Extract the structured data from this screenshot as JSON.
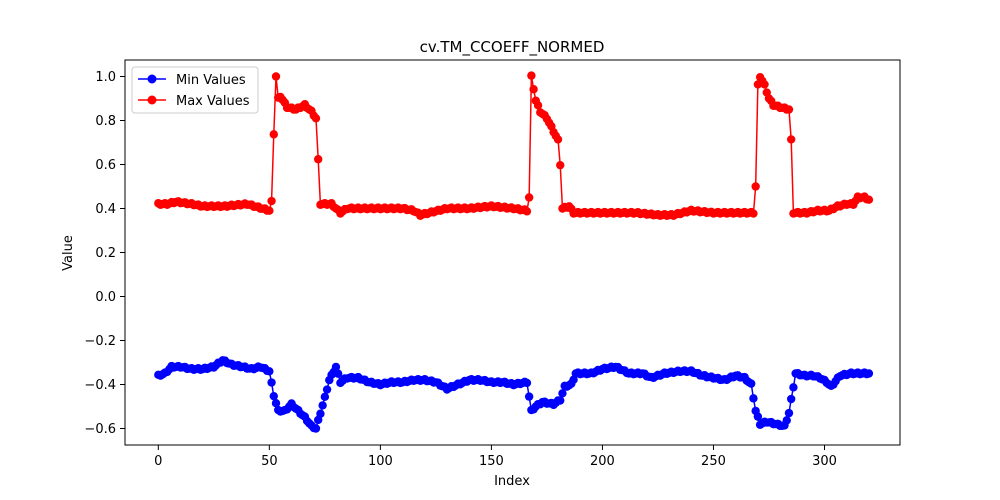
{
  "chart_data": {
    "type": "line",
    "title": "cv.TM_CCOEFF_NORMED",
    "xlabel": "Index",
    "ylabel": "Value",
    "xlim": [
      -15,
      334
    ],
    "ylim": [
      -0.675,
      1.075
    ],
    "xticks": [
      0,
      50,
      100,
      150,
      200,
      250,
      300
    ],
    "yticks": [
      -0.6,
      -0.4,
      -0.2,
      0.0,
      0.2,
      0.4,
      0.6,
      0.8,
      1.0
    ],
    "ytick_labels": [
      "−0.6",
      "−0.4",
      "−0.2",
      "0.0",
      "0.2",
      "0.4",
      "0.6",
      "0.8",
      "1.0"
    ],
    "grid": false,
    "legend_position": "top-left",
    "marker": "circle",
    "series": [
      {
        "name": "Min Values",
        "color": "#0000ff",
        "keypoints": [
          [
            0,
            -0.36
          ],
          [
            3,
            -0.35
          ],
          [
            6,
            -0.32
          ],
          [
            10,
            -0.32
          ],
          [
            15,
            -0.33
          ],
          [
            20,
            -0.33
          ],
          [
            25,
            -0.32
          ],
          [
            29,
            -0.29
          ],
          [
            33,
            -0.31
          ],
          [
            38,
            -0.32
          ],
          [
            42,
            -0.33
          ],
          [
            46,
            -0.32
          ],
          [
            50,
            -0.34
          ],
          [
            52,
            -0.45
          ],
          [
            54,
            -0.52
          ],
          [
            57,
            -0.52
          ],
          [
            60,
            -0.49
          ],
          [
            63,
            -0.52
          ],
          [
            66,
            -0.55
          ],
          [
            69,
            -0.59
          ],
          [
            71,
            -0.6
          ],
          [
            73,
            -0.53
          ],
          [
            75,
            -0.46
          ],
          [
            77,
            -0.38
          ],
          [
            80,
            -0.32
          ],
          [
            82,
            -0.39
          ],
          [
            85,
            -0.37
          ],
          [
            90,
            -0.37
          ],
          [
            95,
            -0.39
          ],
          [
            100,
            -0.4
          ],
          [
            105,
            -0.39
          ],
          [
            110,
            -0.39
          ],
          [
            115,
            -0.38
          ],
          [
            120,
            -0.38
          ],
          [
            125,
            -0.39
          ],
          [
            130,
            -0.42
          ],
          [
            135,
            -0.4
          ],
          [
            140,
            -0.38
          ],
          [
            145,
            -0.38
          ],
          [
            150,
            -0.39
          ],
          [
            155,
            -0.39
          ],
          [
            160,
            -0.4
          ],
          [
            166,
            -0.39
          ],
          [
            168,
            -0.52
          ],
          [
            170,
            -0.5
          ],
          [
            173,
            -0.48
          ],
          [
            178,
            -0.49
          ],
          [
            181,
            -0.47
          ],
          [
            183,
            -0.41
          ],
          [
            186,
            -0.4
          ],
          [
            188,
            -0.35
          ],
          [
            195,
            -0.35
          ],
          [
            200,
            -0.33
          ],
          [
            206,
            -0.32
          ],
          [
            212,
            -0.35
          ],
          [
            218,
            -0.35
          ],
          [
            222,
            -0.37
          ],
          [
            228,
            -0.35
          ],
          [
            235,
            -0.34
          ],
          [
            240,
            -0.34
          ],
          [
            245,
            -0.36
          ],
          [
            250,
            -0.37
          ],
          [
            255,
            -0.38
          ],
          [
            260,
            -0.36
          ],
          [
            264,
            -0.37
          ],
          [
            267,
            -0.4
          ],
          [
            269,
            -0.52
          ],
          [
            271,
            -0.58
          ],
          [
            274,
            -0.57
          ],
          [
            278,
            -0.58
          ],
          [
            282,
            -0.59
          ],
          [
            284,
            -0.53
          ],
          [
            285,
            -0.47
          ],
          [
            287,
            -0.35
          ],
          [
            291,
            -0.36
          ],
          [
            295,
            -0.36
          ],
          [
            298,
            -0.37
          ],
          [
            301,
            -0.39
          ],
          [
            303,
            -0.41
          ],
          [
            307,
            -0.36
          ],
          [
            312,
            -0.35
          ],
          [
            316,
            -0.35
          ],
          [
            320,
            -0.35
          ]
        ]
      },
      {
        "name": "Max Values",
        "color": "#ff0000",
        "keypoints": [
          [
            0,
            0.42
          ],
          [
            4,
            0.42
          ],
          [
            8,
            0.43
          ],
          [
            15,
            0.42
          ],
          [
            20,
            0.41
          ],
          [
            30,
            0.41
          ],
          [
            40,
            0.42
          ],
          [
            50,
            0.39
          ],
          [
            51,
            0.43
          ],
          [
            52,
            0.74
          ],
          [
            53,
            1.0
          ],
          [
            54,
            0.9
          ],
          [
            55,
            0.91
          ],
          [
            58,
            0.86
          ],
          [
            62,
            0.85
          ],
          [
            66,
            0.87
          ],
          [
            69,
            0.84
          ],
          [
            71,
            0.81
          ],
          [
            72,
            0.62
          ],
          [
            73,
            0.42
          ],
          [
            78,
            0.42
          ],
          [
            82,
            0.38
          ],
          [
            85,
            0.4
          ],
          [
            90,
            0.4
          ],
          [
            100,
            0.4
          ],
          [
            110,
            0.4
          ],
          [
            115,
            0.39
          ],
          [
            118,
            0.37
          ],
          [
            122,
            0.38
          ],
          [
            130,
            0.4
          ],
          [
            140,
            0.4
          ],
          [
            150,
            0.41
          ],
          [
            160,
            0.4
          ],
          [
            166,
            0.39
          ],
          [
            167,
            0.45
          ],
          [
            168,
            1.0
          ],
          [
            170,
            0.89
          ],
          [
            172,
            0.84
          ],
          [
            175,
            0.81
          ],
          [
            178,
            0.75
          ],
          [
            180,
            0.71
          ],
          [
            181,
            0.6
          ],
          [
            182,
            0.4
          ],
          [
            185,
            0.41
          ],
          [
            187,
            0.38
          ],
          [
            200,
            0.38
          ],
          [
            215,
            0.38
          ],
          [
            225,
            0.37
          ],
          [
            232,
            0.37
          ],
          [
            240,
            0.39
          ],
          [
            250,
            0.38
          ],
          [
            260,
            0.38
          ],
          [
            268,
            0.38
          ],
          [
            269,
            0.5
          ],
          [
            270,
            0.96
          ],
          [
            271,
            1.0
          ],
          [
            273,
            0.96
          ],
          [
            275,
            0.9
          ],
          [
            277,
            0.87
          ],
          [
            280,
            0.86
          ],
          [
            284,
            0.85
          ],
          [
            285,
            0.71
          ],
          [
            286,
            0.38
          ],
          [
            292,
            0.38
          ],
          [
            297,
            0.39
          ],
          [
            302,
            0.39
          ],
          [
            306,
            0.41
          ],
          [
            310,
            0.42
          ],
          [
            313,
            0.42
          ],
          [
            315,
            0.45
          ],
          [
            318,
            0.45
          ],
          [
            320,
            0.44
          ]
        ]
      }
    ]
  }
}
